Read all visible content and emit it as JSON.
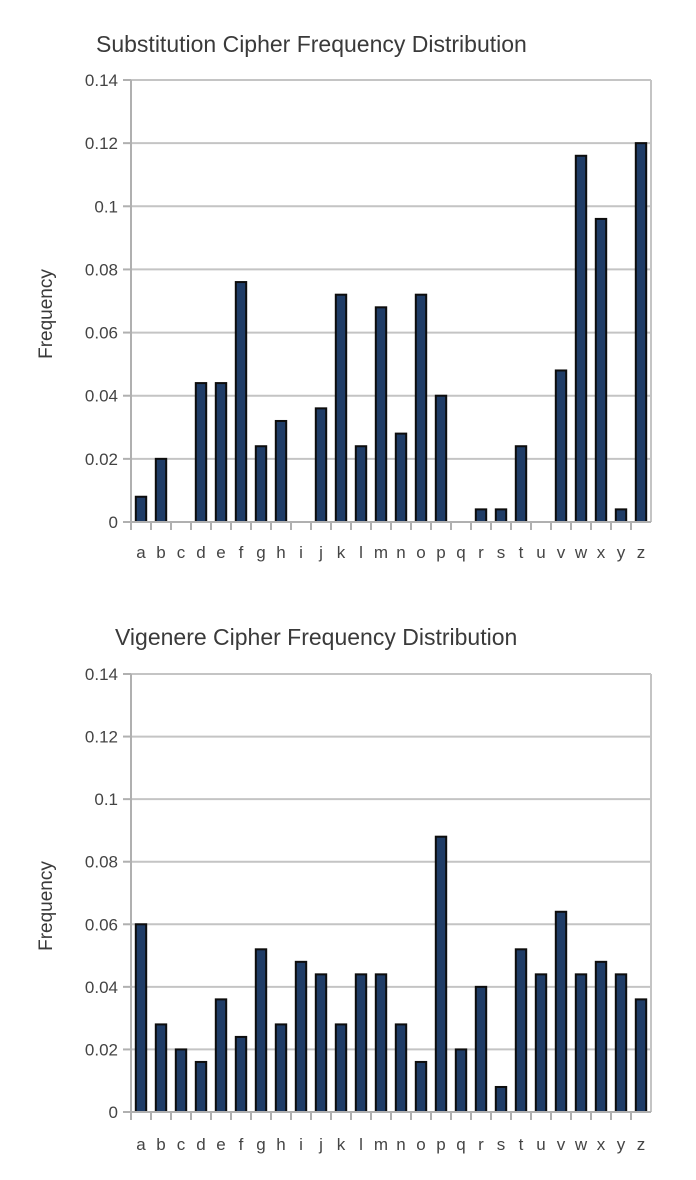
{
  "chart_data": [
    {
      "type": "bar",
      "title": "Substitution Cipher Frequency Distribution",
      "xlabel": "",
      "ylabel": "Frequency",
      "ylim": [
        0,
        0.14
      ],
      "yticks": [
        "0",
        "0.02",
        "0.04",
        "0.06",
        "0.08",
        "0.1",
        "0.12",
        "0.14"
      ],
      "ytick_values": [
        0,
        0.02,
        0.04,
        0.06,
        0.08,
        0.1,
        0.12,
        0.14
      ],
      "grid": true,
      "bar_color": "#1f3c66",
      "categories": [
        "a",
        "b",
        "c",
        "d",
        "e",
        "f",
        "g",
        "h",
        "i",
        "j",
        "k",
        "l",
        "m",
        "n",
        "o",
        "p",
        "q",
        "r",
        "s",
        "t",
        "u",
        "v",
        "w",
        "x",
        "y",
        "z"
      ],
      "values": [
        0.008,
        0.02,
        0,
        0.044,
        0.044,
        0.076,
        0.024,
        0.032,
        0,
        0.036,
        0.072,
        0.024,
        0.068,
        0.028,
        0.072,
        0.04,
        0,
        0.004,
        0.004,
        0.024,
        0,
        0.048,
        0.116,
        0.096,
        0.004,
        0.12
      ]
    },
    {
      "type": "bar",
      "title": "Vigenere Cipher Frequency Distribution",
      "xlabel": "",
      "ylabel": "Frequency",
      "ylim": [
        0,
        0.14
      ],
      "yticks": [
        "0",
        "0.02",
        "0.04",
        "0.06",
        "0.08",
        "0.1",
        "0.12",
        "0.14"
      ],
      "ytick_values": [
        0,
        0.02,
        0.04,
        0.06,
        0.08,
        0.1,
        0.12,
        0.14
      ],
      "grid": true,
      "bar_color": "#1f3c66",
      "categories": [
        "a",
        "b",
        "c",
        "d",
        "e",
        "f",
        "g",
        "h",
        "i",
        "j",
        "k",
        "l",
        "m",
        "n",
        "o",
        "p",
        "q",
        "r",
        "s",
        "t",
        "u",
        "v",
        "w",
        "x",
        "y",
        "z"
      ],
      "values": [
        0.06,
        0.028,
        0.02,
        0.016,
        0.036,
        0.024,
        0.052,
        0.028,
        0.048,
        0.044,
        0.028,
        0.044,
        0.044,
        0.028,
        0.016,
        0.088,
        0.02,
        0.04,
        0.008,
        0.052,
        0.044,
        0.064,
        0.044,
        0.048,
        0.044,
        0.036
      ]
    }
  ]
}
